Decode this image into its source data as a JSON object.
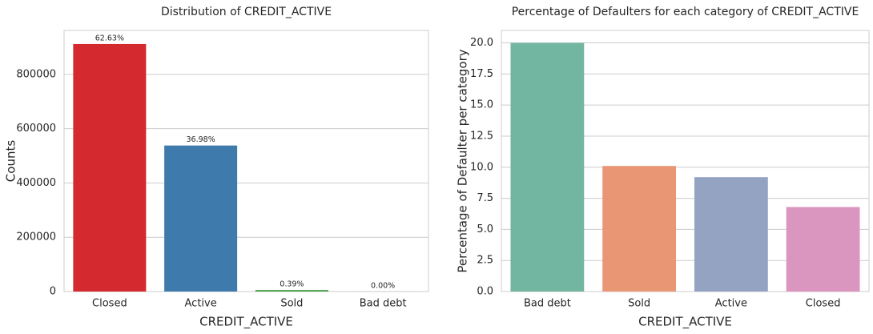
{
  "chart_data": [
    {
      "type": "bar",
      "title": "Distribution of CREDIT_ACTIVE",
      "xlabel": "CREDIT_ACTIVE",
      "ylabel": "Counts",
      "categories": [
        "Closed",
        "Active",
        "Sold",
        "Bad debt"
      ],
      "values": [
        912000,
        538000,
        5700,
        20
      ],
      "annotations": [
        "62.63%",
        "36.98%",
        "0.39%",
        "0.00%"
      ],
      "colors": [
        "#d42a2f",
        "#3f7aad",
        "#4fa24e",
        "#8e5a9d"
      ],
      "ylim": [
        0,
        962000
      ],
      "yticks": [
        0,
        200000,
        400000,
        600000,
        800000
      ],
      "grid": true
    },
    {
      "type": "bar",
      "title": "Percentage of Defaulters for each category of CREDIT_ACTIVE",
      "xlabel": "CREDIT_ACTIVE",
      "ylabel": "Percentage of Defaulter per category",
      "categories": [
        "Bad debt",
        "Sold",
        "Active",
        "Closed"
      ],
      "values": [
        20.0,
        10.1,
        9.2,
        6.8
      ],
      "colors": [
        "#72b6a1",
        "#e99675",
        "#95a3c3",
        "#db96c0"
      ],
      "ylim": [
        0,
        21
      ],
      "yticks": [
        {
          "value": 0,
          "label": "0.0"
        },
        {
          "value": 2.5,
          "label": "2.5"
        },
        {
          "value": 5,
          "label": "5.0"
        },
        {
          "value": 7.5,
          "label": "7.5"
        },
        {
          "value": 10,
          "label": "10.0"
        },
        {
          "value": 12.5,
          "label": "12.5"
        },
        {
          "value": 15,
          "label": "15.0"
        },
        {
          "value": 17.5,
          "label": "17.5"
        },
        {
          "value": 20,
          "label": "20.0"
        }
      ],
      "grid": true
    }
  ]
}
